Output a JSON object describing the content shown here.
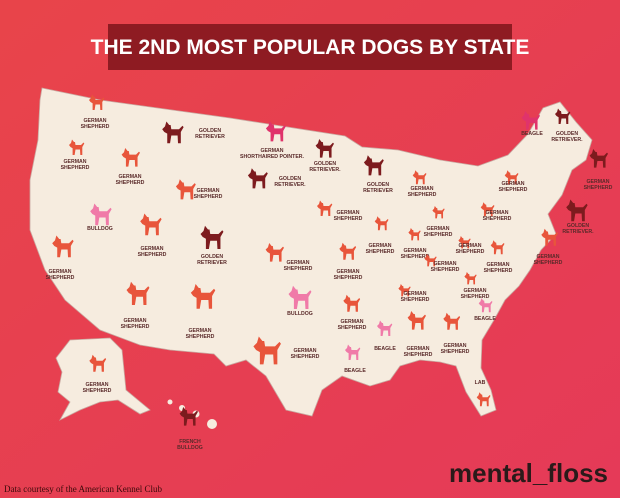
{
  "header": {
    "title": "THE 2ND MOST POPULAR DOGS BY STATE"
  },
  "labels": [
    [
      "GERMAN",
      "SHEPHERD"
    ],
    [
      "GERMAN",
      "SHEPHERD"
    ],
    [
      "GERMAN",
      "SHEPHERD"
    ],
    [
      "GOLDEN",
      "RETRIEVER"
    ],
    [
      "GERMAN",
      "SHORTHAIRED POINTER."
    ],
    [
      "GOLDEN",
      "RETRIEVER."
    ],
    [
      "GERMAN",
      "SHEPHERD"
    ],
    [
      "GOLDEN",
      "RETRIEVER."
    ],
    [
      "GOLDEN",
      "RETRIEVER"
    ],
    [
      "GERMAN",
      "SHEPHERD"
    ],
    [
      "BULLDOG"
    ],
    [
      "GERMAN",
      "SHEPHERD"
    ],
    [
      "GOLDEN",
      "RETRIEVER"
    ],
    [
      "GERMAN",
      "SHEPHERD"
    ],
    [
      "GERMAN",
      "SHEPHERD"
    ],
    [
      "GERMAN",
      "SHEPHERD"
    ],
    [
      "GERMAN",
      "SHEPHERD"
    ],
    [
      "GERMAN",
      "SHEPHERD"
    ],
    [
      "GERMAN",
      "SHEPHERD"
    ],
    [
      "BULLDOG"
    ],
    [
      "GERMAN",
      "SHEPHERD"
    ],
    [
      "GERMAN",
      "SHEPHERD"
    ],
    [
      "BEAGLE"
    ],
    [
      "BEAGLE"
    ],
    [
      "GERMAN",
      "SHEPHERD"
    ],
    [
      "GERMAN",
      "SHEPHERD"
    ],
    [
      "BEAGLE"
    ],
    [
      "LAB"
    ],
    [
      "GERMAN",
      "SHEPHERD"
    ],
    [
      "FRENCH",
      "BULLDOG"
    ],
    [
      "BEAGLE"
    ],
    [
      "GOLDEN",
      "RETRIEVER."
    ],
    [
      "GERMAN",
      "SHEPHERD"
    ],
    [
      "GERMAN",
      "SHEPHERD"
    ],
    [
      "GOLDEN",
      "RETRIEVER."
    ],
    [
      "GERMAN",
      "SHEPHERD"
    ],
    [
      "GERMAN",
      "SHEPHERD"
    ],
    [
      "GERMAN",
      "SHEPHERD"
    ],
    [
      "GERMAN",
      "SHEPHERD"
    ],
    [
      "GERMAN",
      "SHEPHERD"
    ],
    [
      "GERMAN",
      "SHEPHERD"
    ],
    [
      "GERMAN",
      "SHEPHERD"
    ],
    [
      "GERMAN",
      "SHEPHERD"
    ],
    [
      "GERMAN",
      "SHEPHERD"
    ],
    [
      "GERMAN",
      "SHEPHERD"
    ]
  ],
  "footer": {
    "credit": "Data courtesy of the American Kennel Club",
    "brand": "mental_floss"
  }
}
